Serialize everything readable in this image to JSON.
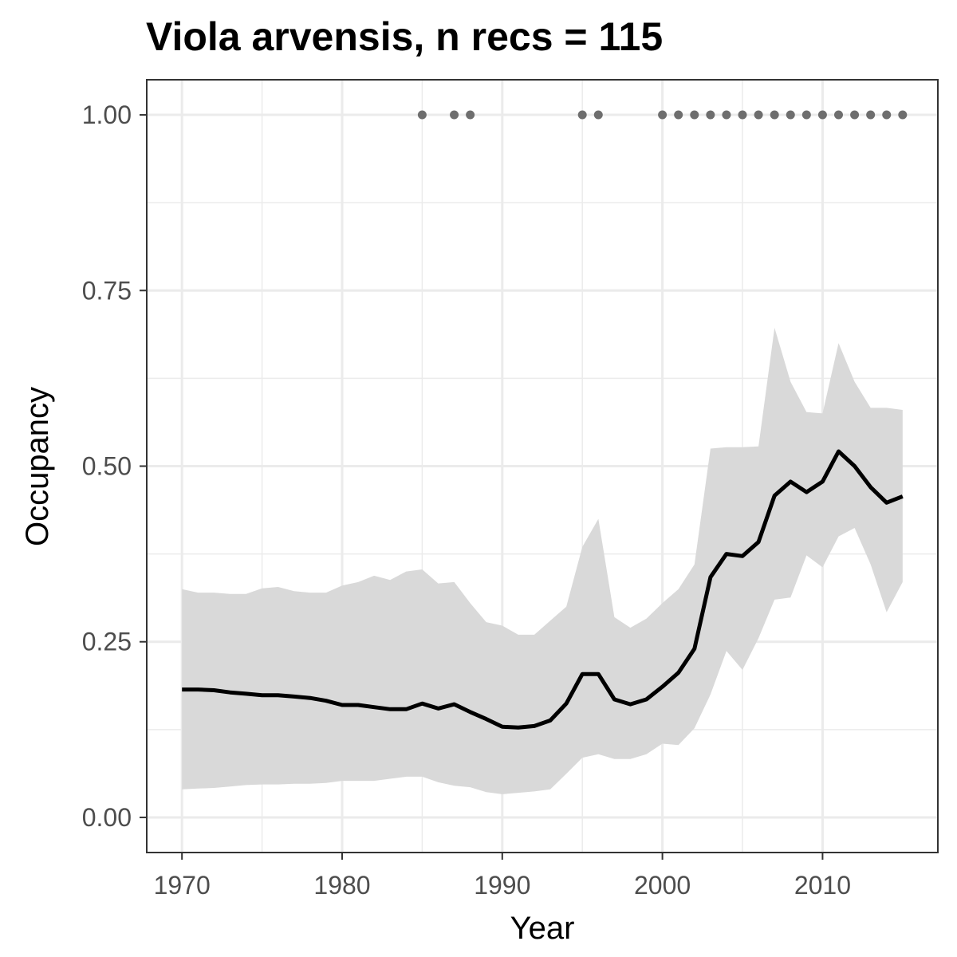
{
  "chart_data": {
    "type": "line",
    "title": "Viola arvensis, n recs = 115",
    "xlabel": "Year",
    "ylabel": "Occupancy",
    "xlim": [
      1967.8,
      2017.2
    ],
    "ylim": [
      -0.05,
      1.05
    ],
    "x_ticks": [
      1970,
      1980,
      1990,
      2000,
      2010
    ],
    "x_tick_labels": [
      "1970",
      "1980",
      "1990",
      "2000",
      "2010"
    ],
    "y_ticks": [
      0,
      0.25,
      0.5,
      0.75,
      1.0
    ],
    "y_tick_labels": [
      "0.00",
      "0.25",
      "0.50",
      "0.75",
      "1.00"
    ],
    "grid": true,
    "x": [
      1970,
      1971,
      1972,
      1973,
      1974,
      1975,
      1976,
      1977,
      1978,
      1979,
      1980,
      1981,
      1982,
      1983,
      1984,
      1985,
      1986,
      1987,
      1988,
      1989,
      1990,
      1991,
      1992,
      1993,
      1994,
      1995,
      1996,
      1997,
      1998,
      1999,
      2000,
      2001,
      2002,
      2003,
      2004,
      2005,
      2006,
      2007,
      2008,
      2009,
      2010,
      2011,
      2012,
      2013,
      2014,
      2015
    ],
    "series": [
      {
        "values": [
          0.182,
          0.182,
          0.181,
          0.178,
          0.176,
          0.174,
          0.174,
          0.172,
          0.17,
          0.166,
          0.16,
          0.16,
          0.157,
          0.154,
          0.154,
          0.162,
          0.155,
          0.161,
          0.15,
          0.14,
          0.129,
          0.128,
          0.13,
          0.138,
          0.162,
          0.204,
          0.204,
          0.168,
          0.161,
          0.168,
          0.186,
          0.206,
          0.24,
          0.342,
          0.375,
          0.372,
          0.392,
          0.458,
          0.478,
          0.463,
          0.478,
          0.521,
          0.5,
          0.47,
          0.448,
          0.457
        ],
        "lower": [
          0.04,
          0.041,
          0.042,
          0.044,
          0.046,
          0.047,
          0.047,
          0.048,
          0.048,
          0.049,
          0.052,
          0.052,
          0.052,
          0.055,
          0.058,
          0.058,
          0.05,
          0.045,
          0.043,
          0.036,
          0.033,
          0.035,
          0.037,
          0.04,
          0.062,
          0.085,
          0.09,
          0.083,
          0.083,
          0.09,
          0.105,
          0.103,
          0.127,
          0.175,
          0.237,
          0.21,
          0.255,
          0.31,
          0.313,
          0.373,
          0.356,
          0.4,
          0.412,
          0.36,
          0.292,
          0.335
        ],
        "upper": [
          0.325,
          0.32,
          0.32,
          0.318,
          0.318,
          0.326,
          0.328,
          0.322,
          0.32,
          0.32,
          0.33,
          0.335,
          0.344,
          0.338,
          0.35,
          0.353,
          0.333,
          0.335,
          0.305,
          0.278,
          0.273,
          0.26,
          0.26,
          0.28,
          0.3,
          0.385,
          0.425,
          0.285,
          0.27,
          0.283,
          0.305,
          0.325,
          0.36,
          0.525,
          0.527,
          0.527,
          0.528,
          0.697,
          0.62,
          0.577,
          0.575,
          0.675,
          0.62,
          0.583,
          0.583,
          0.58
        ]
      }
    ],
    "records": {
      "x": [
        1985,
        1987,
        1988,
        1995,
        1996,
        2000,
        2001,
        2002,
        2003,
        2004,
        2005,
        2006,
        2007,
        2008,
        2009,
        2010,
        2011,
        2012,
        2013,
        2014,
        2015
      ],
      "y": 1.0
    },
    "colors": {
      "line": "#000000",
      "ribbon": "#d9d9d9",
      "points": "#6e6e6e",
      "grid": "#ebebeb",
      "panel_border": "#333333",
      "tick_text": "#4d4d4d"
    }
  }
}
